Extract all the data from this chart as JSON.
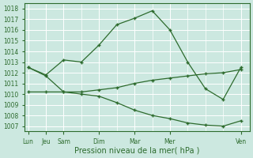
{
  "xlabel": "Pression niveau de la mer( hPa )",
  "bg_color": "#cce8e0",
  "grid_color": "#ffffff",
  "line_color": "#2d6b2d",
  "ylim": [
    1006.5,
    1018.5
  ],
  "yticks": [
    1007,
    1008,
    1009,
    1010,
    1011,
    1012,
    1013,
    1014,
    1015,
    1016,
    1017,
    1018
  ],
  "xlim": [
    -0.2,
    12.5
  ],
  "xtick_positions": [
    0,
    1,
    2,
    4,
    6,
    8,
    12
  ],
  "xtick_labels": [
    "Lun",
    "Jeu",
    "Sam",
    "Dim",
    "Mar",
    "Mer",
    "Ven"
  ],
  "series1_x": [
    0,
    1,
    2,
    3,
    4,
    5,
    6,
    7,
    8,
    9,
    10,
    11,
    12
  ],
  "series1_y": [
    1012.5,
    1011.8,
    1013.2,
    1013.0,
    1014.6,
    1016.5,
    1017.1,
    1017.8,
    1016.0,
    1013.0,
    1010.5,
    1009.5,
    1012.5
  ],
  "series2_x": [
    0,
    1,
    2,
    3,
    4,
    5,
    6,
    7,
    8,
    9,
    10,
    11,
    12
  ],
  "series2_y": [
    1010.2,
    1010.2,
    1010.2,
    1010.2,
    1010.4,
    1010.6,
    1011.0,
    1011.3,
    1011.5,
    1011.7,
    1011.9,
    1012.0,
    1012.3
  ],
  "series3_x": [
    0,
    1,
    2,
    3,
    4,
    5,
    6,
    7,
    8,
    9,
    10,
    11,
    12
  ],
  "series3_y": [
    1012.5,
    1011.7,
    1010.2,
    1010.0,
    1009.8,
    1009.2,
    1008.5,
    1008.0,
    1007.7,
    1007.3,
    1007.1,
    1007.0,
    1007.5
  ]
}
